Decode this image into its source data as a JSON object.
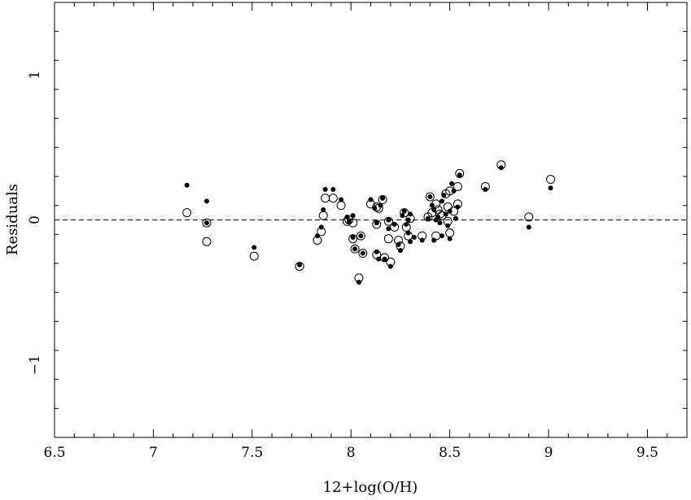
{
  "chart_data": {
    "type": "scatter",
    "title": "",
    "xlabel": "12+log(O/H)",
    "ylabel": "Residuals",
    "xlim": [
      6.5,
      9.7
    ],
    "ylim": [
      -1.5,
      1.5
    ],
    "xticks": [
      "6.5",
      "7",
      "7.5",
      "8",
      "8.5",
      "9",
      "9.5"
    ],
    "yticks": [
      "−1",
      "0",
      "1"
    ],
    "xtick_values": [
      6.5,
      7,
      7.5,
      8,
      8.5,
      9,
      9.5
    ],
    "ytick_values": [
      -1,
      0,
      1
    ],
    "reference_line": {
      "y": 0,
      "style": "dashed"
    },
    "grid": false,
    "legend": "none",
    "series": [
      {
        "marker": "filled-circle",
        "color": "#000000",
        "points": [
          [
            7.17,
            0.24
          ],
          [
            7.27,
            0.13
          ],
          [
            7.27,
            -0.02
          ],
          [
            7.51,
            -0.19
          ],
          [
            7.74,
            -0.31
          ],
          [
            7.83,
            -0.11
          ],
          [
            7.85,
            -0.05
          ],
          [
            7.86,
            0.07
          ],
          [
            7.87,
            0.21
          ],
          [
            7.91,
            0.21
          ],
          [
            7.95,
            0.14
          ],
          [
            7.98,
            0.02
          ],
          [
            7.99,
            -0.01
          ],
          [
            8.01,
            0.03
          ],
          [
            8.01,
            -0.12
          ],
          [
            8.02,
            -0.2
          ],
          [
            8.04,
            -0.43
          ],
          [
            8.05,
            -0.11
          ],
          [
            8.06,
            -0.23
          ],
          [
            8.1,
            0.14
          ],
          [
            8.12,
            0.08
          ],
          [
            8.13,
            -0.02
          ],
          [
            8.13,
            -0.22
          ],
          [
            8.14,
            -0.27
          ],
          [
            8.15,
            0.1
          ],
          [
            8.16,
            0.15
          ],
          [
            8.17,
            -0.27
          ],
          [
            8.19,
            0.0
          ],
          [
            8.19,
            -0.06
          ],
          [
            8.2,
            -0.32
          ],
          [
            8.22,
            -0.03
          ],
          [
            8.24,
            -0.17
          ],
          [
            8.25,
            -0.21
          ],
          [
            8.26,
            0.03
          ],
          [
            8.27,
            0.06
          ],
          [
            8.28,
            -0.03
          ],
          [
            8.29,
            0.0
          ],
          [
            8.29,
            -0.09
          ],
          [
            8.3,
            -0.15
          ],
          [
            8.3,
            0.04
          ],
          [
            8.32,
            -0.12
          ],
          [
            8.36,
            -0.14
          ],
          [
            8.39,
            0.01
          ],
          [
            8.4,
            0.16
          ],
          [
            8.41,
            0.1
          ],
          [
            8.42,
            0.07
          ],
          [
            8.42,
            -0.14
          ],
          [
            8.43,
            0.0
          ],
          [
            8.44,
            0.02
          ],
          [
            8.45,
            -0.02
          ],
          [
            8.46,
            -0.11
          ],
          [
            8.46,
            0.13
          ],
          [
            8.47,
            0.17
          ],
          [
            8.48,
            0.04
          ],
          [
            8.49,
            -0.04
          ],
          [
            8.5,
            -0.13
          ],
          [
            8.5,
            0.06
          ],
          [
            8.51,
            0.25
          ],
          [
            8.52,
            0.2
          ],
          [
            8.53,
            0.01
          ],
          [
            8.54,
            0.09
          ],
          [
            8.55,
            0.31
          ],
          [
            8.68,
            0.21
          ],
          [
            8.76,
            0.36
          ],
          [
            8.9,
            -0.05
          ],
          [
            9.01,
            0.22
          ]
        ]
      },
      {
        "marker": "open-circle",
        "color": "#000000",
        "points": [
          [
            7.17,
            0.05
          ],
          [
            7.27,
            -0.02
          ],
          [
            7.27,
            -0.15
          ],
          [
            7.51,
            -0.25
          ],
          [
            7.74,
            -0.32
          ],
          [
            7.83,
            -0.14
          ],
          [
            7.85,
            -0.08
          ],
          [
            7.86,
            0.03
          ],
          [
            7.87,
            0.15
          ],
          [
            7.91,
            0.15
          ],
          [
            7.95,
            0.1
          ],
          [
            7.98,
            -0.01
          ],
          [
            7.99,
            0.0
          ],
          [
            8.01,
            -0.02
          ],
          [
            8.01,
            -0.13
          ],
          [
            8.02,
            -0.2
          ],
          [
            8.04,
            -0.4
          ],
          [
            8.05,
            -0.11
          ],
          [
            8.06,
            -0.23
          ],
          [
            8.1,
            0.11
          ],
          [
            8.13,
            0.09
          ],
          [
            8.13,
            -0.03
          ],
          [
            8.13,
            -0.24
          ],
          [
            8.14,
            0.08
          ],
          [
            8.16,
            0.14
          ],
          [
            8.17,
            -0.26
          ],
          [
            8.19,
            -0.01
          ],
          [
            8.19,
            -0.13
          ],
          [
            8.2,
            -0.29
          ],
          [
            8.22,
            -0.05
          ],
          [
            8.24,
            -0.14
          ],
          [
            8.25,
            -0.18
          ],
          [
            8.27,
            0.05
          ],
          [
            8.28,
            -0.05
          ],
          [
            8.29,
            -0.11
          ],
          [
            8.3,
            0.01
          ],
          [
            8.36,
            -0.11
          ],
          [
            8.39,
            0.02
          ],
          [
            8.4,
            0.16
          ],
          [
            8.41,
            0.05
          ],
          [
            8.43,
            0.11
          ],
          [
            8.43,
            -0.11
          ],
          [
            8.44,
            0.07
          ],
          [
            8.45,
            0.04
          ],
          [
            8.46,
            0.03
          ],
          [
            8.48,
            0.18
          ],
          [
            8.49,
            0.09
          ],
          [
            8.49,
            -0.01
          ],
          [
            8.5,
            -0.09
          ],
          [
            8.5,
            0.2
          ],
          [
            8.52,
            0.06
          ],
          [
            8.54,
            0.11
          ],
          [
            8.54,
            0.23
          ],
          [
            8.55,
            0.32
          ],
          [
            8.68,
            0.23
          ],
          [
            8.76,
            0.38
          ],
          [
            8.9,
            0.02
          ],
          [
            9.01,
            0.28
          ]
        ]
      }
    ]
  }
}
